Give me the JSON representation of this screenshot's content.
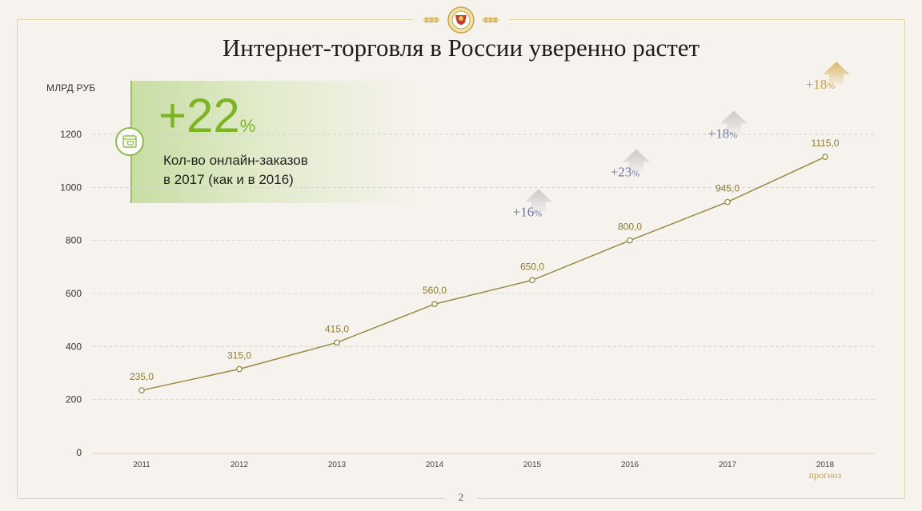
{
  "title": "Интернет-торговля в России уверенно растет",
  "page_number": "2",
  "callout": {
    "value": "+22",
    "value_suffix": "%",
    "line1": "Кол-во онлайн-заказов",
    "line2": "в 2017 (как и в 2016)",
    "icon": "cart-icon"
  },
  "colors": {
    "line": "#9a8a47",
    "label": "#8c7a33",
    "growth": "#6f78a3",
    "forecast": "#c2a14f",
    "callout_accent": "#7cb424",
    "grid": "#cfcfcf"
  },
  "chart_data": {
    "type": "line",
    "ylabel": "МЛРД РУБ",
    "ylim": [
      0,
      1200
    ],
    "yticks": [
      "0",
      "200",
      "400",
      "600",
      "800",
      "1000",
      "1200"
    ],
    "categories": [
      "2011",
      "2012",
      "2013",
      "2014",
      "2015",
      "2016",
      "2017",
      "2018"
    ],
    "values": [
      235,
      315,
      415,
      560,
      650,
      800,
      945,
      1115
    ],
    "value_labels": [
      "235,0",
      "315,0",
      "415,0",
      "560,0",
      "650,0",
      "800,0",
      "945,0",
      "1115,0"
    ],
    "forecast_label": "прогноз",
    "growth": [
      {
        "category": "2015",
        "label": "+16",
        "suffix": "%"
      },
      {
        "category": "2016",
        "label": "+23",
        "suffix": "%"
      },
      {
        "category": "2017",
        "label": "+18",
        "suffix": "%"
      },
      {
        "category": "2018",
        "label": "+18",
        "suffix": "%",
        "forecast": true
      }
    ],
    "grid": true
  }
}
